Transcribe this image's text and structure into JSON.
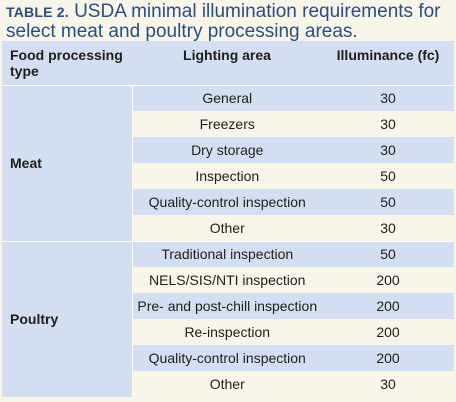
{
  "caption": {
    "label": "TABLE 2.",
    "text": "USDA minimal illumination requirements for select meat and poultry processing areas."
  },
  "headers": {
    "type": "Food processing type",
    "area": "Lighting area",
    "illuminance": "Illuminance (fc)"
  },
  "groups": [
    {
      "name": "Meat",
      "rows": [
        {
          "area": "General",
          "value": "30"
        },
        {
          "area": "Freezers",
          "value": "30"
        },
        {
          "area": "Dry storage",
          "value": "30"
        },
        {
          "area": "Inspection",
          "value": "50"
        },
        {
          "area": "Quality-control inspection",
          "value": "50"
        },
        {
          "area": "Other",
          "value": "30"
        }
      ]
    },
    {
      "name": "Poultry",
      "rows": [
        {
          "area": "Traditional inspection",
          "value": "50"
        },
        {
          "area": "NELS/SIS/NTI inspection",
          "value": "200"
        },
        {
          "area": "Pre- and post-chill inspection",
          "value": "200"
        },
        {
          "area": "Re-inspection",
          "value": "200"
        },
        {
          "area": "Quality-control inspection",
          "value": "200"
        },
        {
          "area": "Other",
          "value": "30"
        }
      ]
    }
  ]
}
